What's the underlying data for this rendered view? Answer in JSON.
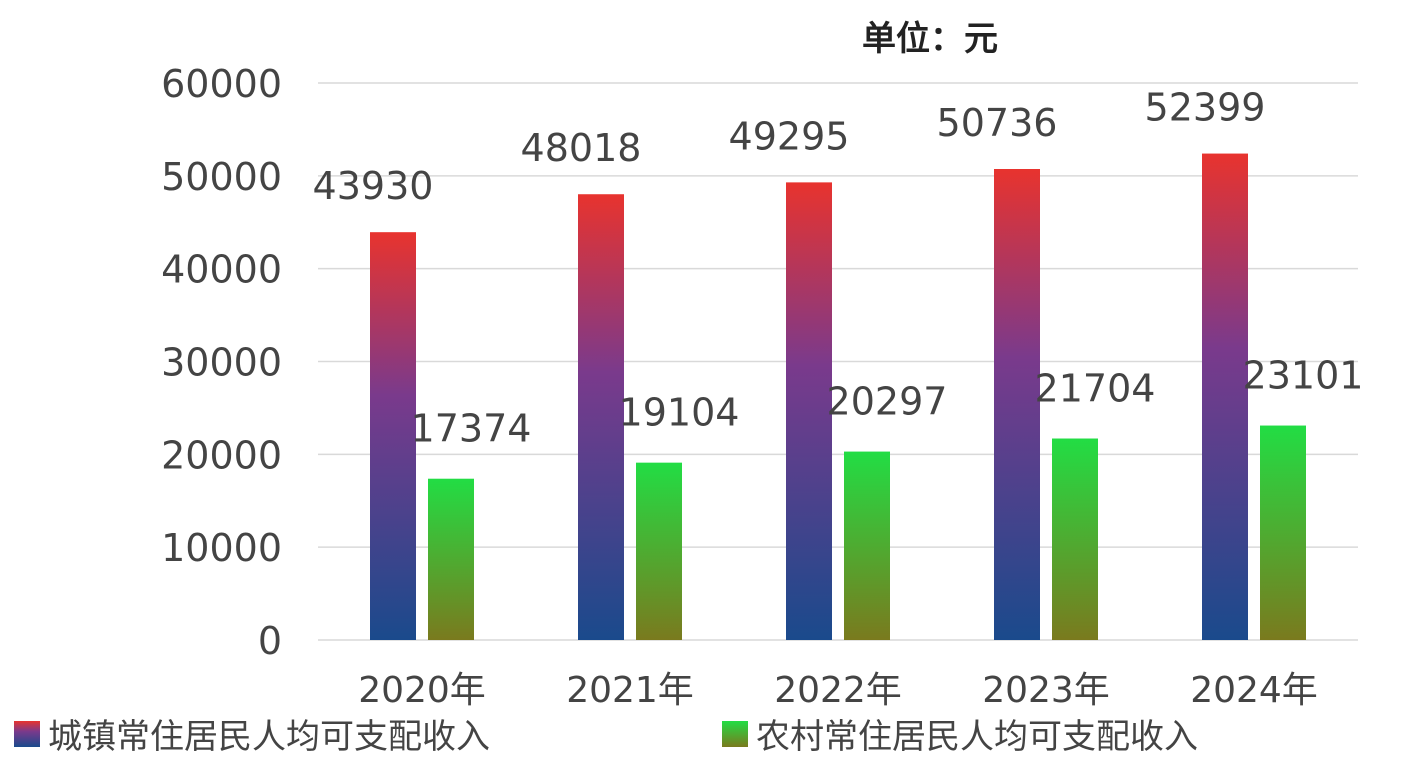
{
  "chart_data": {
    "type": "bar",
    "unit_label": "单位：元",
    "categories": [
      "2020年",
      "2021年",
      "2022年",
      "2023年",
      "2024年"
    ],
    "series": [
      {
        "name": "城镇常住居民人均可支配收入",
        "values": [
          43930,
          48018,
          49295,
          50736,
          52399
        ]
      },
      {
        "name": "农村常住居民人均可支配收入",
        "values": [
          17374,
          19104,
          20297,
          21704,
          23101
        ]
      }
    ],
    "ylim": [
      0,
      60000
    ],
    "yticks": [
      0,
      10000,
      20000,
      30000,
      40000,
      50000,
      60000
    ],
    "grid": true,
    "legend": "bottom",
    "colors": {
      "urban_top": "#e8332e",
      "urban_mid": "#7a3a8c",
      "urban_bottom": "#1a4a8c",
      "rural_top": "#22dd44",
      "rural_bottom": "#7a7a1e",
      "grid": "#d9d9d9"
    }
  }
}
